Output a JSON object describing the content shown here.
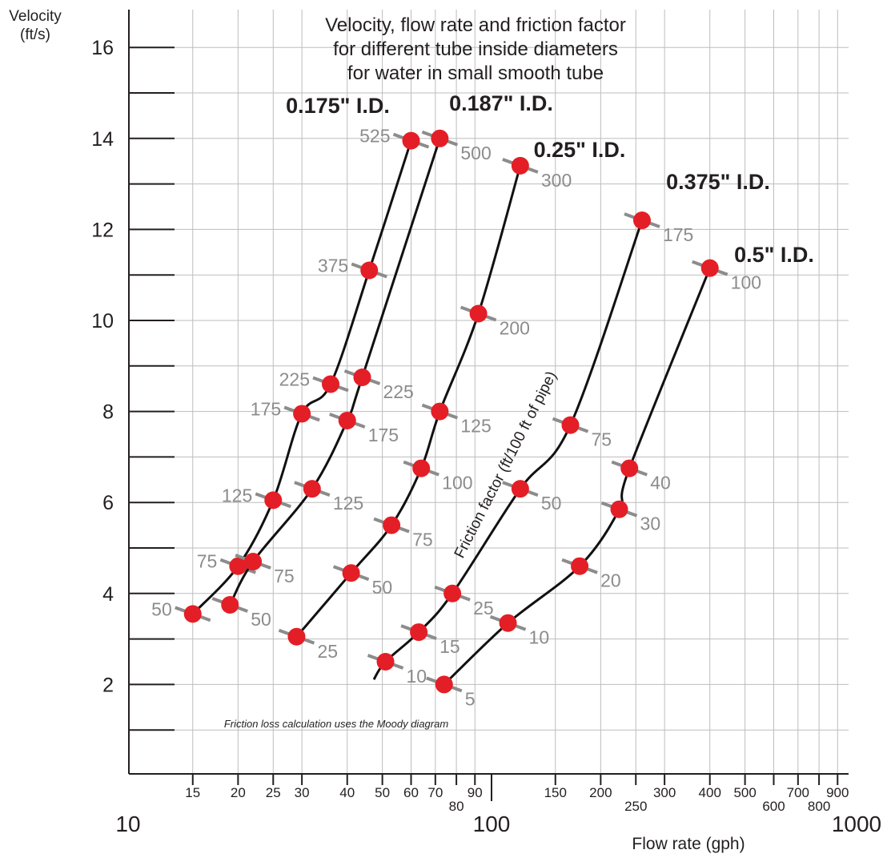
{
  "chart_data": {
    "type": "line",
    "title_lines": [
      "Velocity, flow rate and friction factor",
      "for different tube inside diameters",
      "for water in small smooth tube"
    ],
    "ylabel_lines": [
      "Velocity",
      "(ft/s)"
    ],
    "xlabel": "Flow rate (gph)",
    "x_scale": "log",
    "xlim": [
      10,
      1000
    ],
    "ylim": [
      0,
      17
    ],
    "yticks": [
      2,
      4,
      6,
      8,
      10,
      12,
      14,
      16
    ],
    "xticks_minor": [
      {
        "value": 15,
        "label": "15"
      },
      {
        "value": 20,
        "label": "20"
      },
      {
        "value": 25,
        "label": "25"
      },
      {
        "value": 30,
        "label": "30"
      },
      {
        "value": 40,
        "label": "40"
      },
      {
        "value": 50,
        "label": "50"
      },
      {
        "value": 60,
        "label": "60"
      },
      {
        "value": 70,
        "label": "70"
      },
      {
        "value": 80,
        "label": "80"
      },
      {
        "value": 90,
        "label": "90"
      },
      {
        "value": 150,
        "label": "150"
      },
      {
        "value": 200,
        "label": "200"
      },
      {
        "value": 250,
        "label": "250"
      },
      {
        "value": 300,
        "label": "300"
      },
      {
        "value": 400,
        "label": "400"
      },
      {
        "value": 500,
        "label": "500"
      },
      {
        "value": 600,
        "label": "600"
      },
      {
        "value": 700,
        "label": "700"
      },
      {
        "value": 800,
        "label": "800"
      },
      {
        "value": 900,
        "label": "900"
      }
    ],
    "xticks_major": [
      {
        "value": 10,
        "label": "10"
      },
      {
        "value": 100,
        "label": "100"
      },
      {
        "value": 1000,
        "label": "1000"
      }
    ],
    "friction_axis_label": "Friction factor (ft/100 ft of pipe)",
    "note": "Friction loss calculation uses the Moody diagram",
    "series": [
      {
        "name": "0.175\" I.D.",
        "points": [
          {
            "x": 15,
            "y": 3.55,
            "label": "50"
          },
          {
            "x": 20,
            "y": 4.6,
            "label": "75"
          },
          {
            "x": 25,
            "y": 6.05,
            "label": "125"
          },
          {
            "x": 30,
            "y": 7.95,
            "label": "175"
          },
          {
            "x": 36,
            "y": 8.6,
            "label": "225"
          },
          {
            "x": 46,
            "y": 11.1,
            "label": "375"
          },
          {
            "x": 60,
            "y": 13.95,
            "label": "525"
          }
        ]
      },
      {
        "name": "0.187\" I.D.",
        "points": [
          {
            "x": 19,
            "y": 3.75,
            "label": "50"
          },
          {
            "x": 22,
            "y": 4.7,
            "label": "75"
          },
          {
            "x": 32,
            "y": 6.3,
            "label": "125"
          },
          {
            "x": 40,
            "y": 7.8,
            "label": "175"
          },
          {
            "x": 44,
            "y": 8.75,
            "label": "225"
          },
          {
            "x": 72,
            "y": 14.0,
            "label": "500"
          }
        ]
      },
      {
        "name": "0.25\" I.D.",
        "points": [
          {
            "x": 29,
            "y": 3.05,
            "label": "25"
          },
          {
            "x": 41,
            "y": 4.45,
            "label": "50"
          },
          {
            "x": 53,
            "y": 5.5,
            "label": "75"
          },
          {
            "x": 64,
            "y": 6.75,
            "label": "100"
          },
          {
            "x": 72,
            "y": 8.0,
            "label": "125"
          },
          {
            "x": 92,
            "y": 10.15,
            "label": "200"
          },
          {
            "x": 120,
            "y": 13.4,
            "label": "300"
          }
        ]
      },
      {
        "name": "0.375\" I.D.",
        "points": [
          {
            "x": 51,
            "y": 2.5,
            "label": "10"
          },
          {
            "x": 63,
            "y": 3.15,
            "label": "15"
          },
          {
            "x": 78,
            "y": 4.0,
            "label": "25"
          },
          {
            "x": 120,
            "y": 6.3,
            "label": "50"
          },
          {
            "x": 165,
            "y": 7.7,
            "label": "75"
          },
          {
            "x": 260,
            "y": 12.2,
            "label": "175"
          }
        ]
      },
      {
        "name": "0.5\" I.D.",
        "points": [
          {
            "x": 74,
            "y": 2.0,
            "label": "5"
          },
          {
            "x": 111,
            "y": 3.35,
            "label": "10"
          },
          {
            "x": 175,
            "y": 4.6,
            "label": "20"
          },
          {
            "x": 225,
            "y": 5.85,
            "label": "30"
          },
          {
            "x": 240,
            "y": 6.75,
            "label": "40"
          },
          {
            "x": 400,
            "y": 11.15,
            "label": "100"
          }
        ]
      }
    ]
  }
}
